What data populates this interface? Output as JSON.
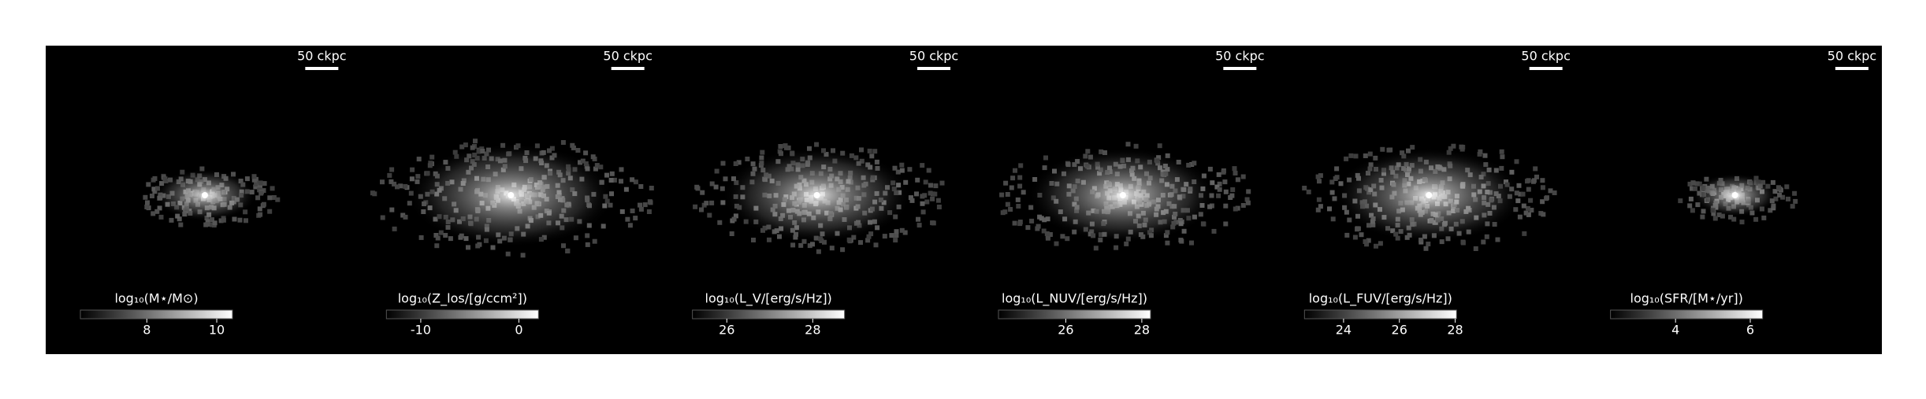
{
  "chart_data": [
    {
      "type": "image",
      "scale_bar": "50 ckpc",
      "colorbar_label": "log₁₀(M⋆/M⊙)",
      "clim": [
        6.1,
        10.45
      ],
      "cticks": [
        8,
        10
      ],
      "cmap": "gray"
    },
    {
      "type": "image",
      "scale_bar": "50 ckpc",
      "colorbar_label": "log₁₀(Z_los/[g/ccm²])",
      "clim": [
        -13.5,
        2
      ],
      "cticks": [
        -10,
        0
      ],
      "cmap": "gray"
    },
    {
      "type": "image",
      "scale_bar": "50 ckpc",
      "colorbar_label": "log₁₀(L_V/[erg/s/Hz])",
      "clim": [
        25.2,
        28.74
      ],
      "cticks": [
        26,
        28
      ],
      "cmap": "gray"
    },
    {
      "type": "image",
      "scale_bar": "50 ckpc",
      "colorbar_label": "log₁₀(L_NUV/[erg/s/Hz])",
      "clim": [
        24.23,
        28.23
      ],
      "cticks": [
        26,
        28
      ],
      "cmap": "gray"
    },
    {
      "type": "image",
      "scale_bar": "50 ckpc",
      "colorbar_label": "log₁₀(L_FUV/[erg/s/Hz])",
      "clim": [
        22.6,
        28.05
      ],
      "cticks": [
        24,
        26,
        28
      ],
      "cmap": "gray"
    },
    {
      "type": "image",
      "scale_bar": "50 ckpc",
      "colorbar_label": "log₁₀(SFR/[M⋆/yr])",
      "clim": [
        2.26,
        6.33
      ],
      "cticks": [
        4,
        6
      ],
      "cmap": "gray"
    }
  ]
}
